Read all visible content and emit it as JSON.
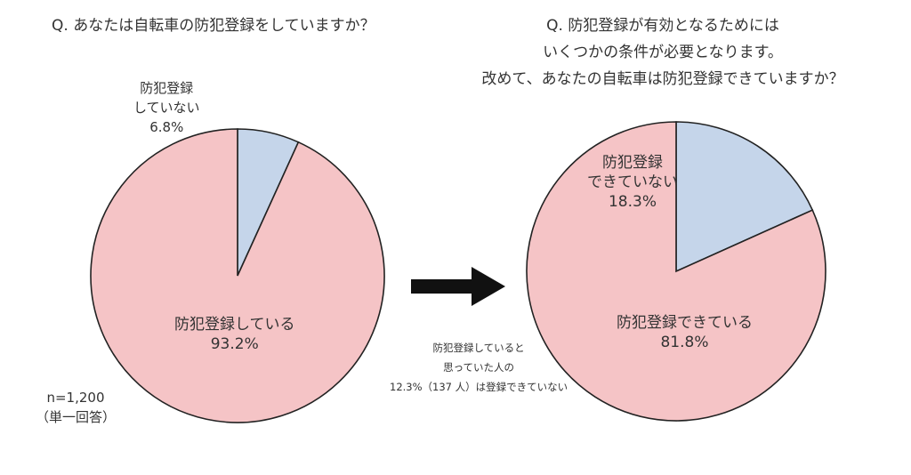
{
  "question_left": "Q. あなたは自転車の防犯登録をしていますか？",
  "question_right": [
    "Q. 防犯登録が有効となるためには",
    "いくつかの条件が必要となります。",
    "改めて、あなたの自転車は防犯登録できていますか？"
  ],
  "chart_data": [
    {
      "type": "pie",
      "slices": [
        {
          "label": [
            "防犯登録していない"
          ],
          "value": 6.8,
          "value_label": "6.8%",
          "color": "#c5d5ea"
        },
        {
          "label": [
            "防犯登録している"
          ],
          "value": 93.2,
          "value_label": "93.2%",
          "color": "#f5c4c6"
        }
      ]
    },
    {
      "type": "pie",
      "slices": [
        {
          "label": [
            "防犯登録できていない"
          ],
          "value": 18.3,
          "value_label": "18.3%",
          "color": "#c5d5ea"
        },
        {
          "label": [
            "防犯登録できている"
          ],
          "value": 81.8,
          "value_label": "81.8%",
          "color": "#f5c4c6"
        }
      ]
    }
  ],
  "sample_note": [
    "n=1,200",
    "（単一回答）"
  ],
  "transition_note": [
    "防犯登録していると",
    "思っていた人の",
    "12.3%（137 人）は登録できていない"
  ],
  "labels": {
    "left_small": [
      "防犯登録",
      "していない",
      "6.8%"
    ],
    "left_big": [
      "防犯登録している",
      "93.2%"
    ],
    "right_small": [
      "防犯登録",
      "できていない",
      "18.3%"
    ],
    "right_big": [
      "防犯登録できている",
      "81.8%"
    ]
  }
}
